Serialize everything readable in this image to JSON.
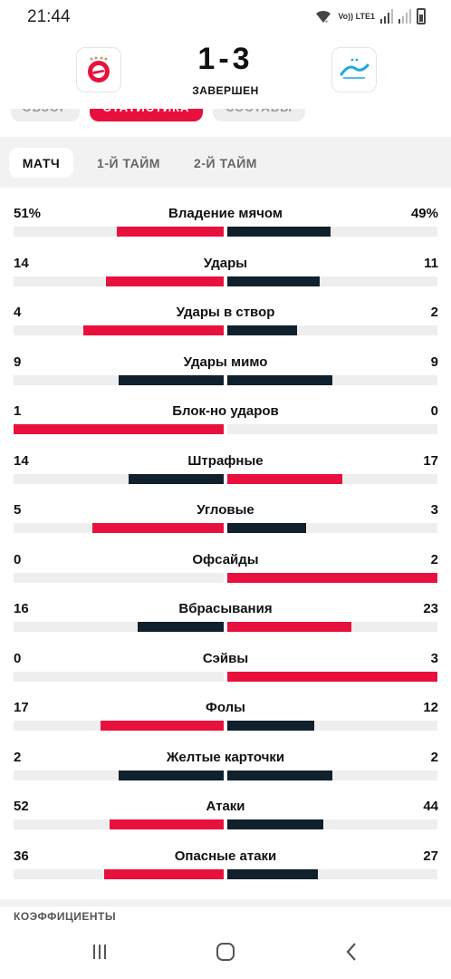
{
  "status_bar": {
    "time": "21:44",
    "network": "Vo)) LTE1"
  },
  "match": {
    "score": "1-3",
    "status": "ЗАВЕРШЕН",
    "home_logo_icon": "spartak-logo-icon",
    "away_logo_icon": "zenit-logo-icon"
  },
  "top_tabs": [
    "ОБЗОР",
    "СТАТИСТИКА",
    "СОСТАВЫ"
  ],
  "period_tabs": {
    "match": "МАТЧ",
    "first_half": "1-Й ТАЙМ",
    "second_half": "2-Й ТАЙМ",
    "active": "МАТЧ"
  },
  "colors": {
    "accent": "#e8113e",
    "dark": "#10202c",
    "track": "#eeeeee"
  },
  "stats": [
    {
      "name": "Владение мячом",
      "home": "51%",
      "away": "49%",
      "home_frac": 0.51,
      "away_frac": 0.49,
      "leader": "home"
    },
    {
      "name": "Удары",
      "home": "14",
      "away": "11",
      "home_frac": 0.56,
      "away_frac": 0.44,
      "leader": "home"
    },
    {
      "name": "Удары в створ",
      "home": "4",
      "away": "2",
      "home_frac": 0.667,
      "away_frac": 0.333,
      "leader": "home"
    },
    {
      "name": "Удары мимо",
      "home": "9",
      "away": "9",
      "home_frac": 0.5,
      "away_frac": 0.5,
      "leader": "none"
    },
    {
      "name": "Блок-но ударов",
      "home": "1",
      "away": "0",
      "home_frac": 1.0,
      "away_frac": 0.0,
      "leader": "home"
    },
    {
      "name": "Штрафные",
      "home": "14",
      "away": "17",
      "home_frac": 0.452,
      "away_frac": 0.548,
      "leader": "away"
    },
    {
      "name": "Угловые",
      "home": "5",
      "away": "3",
      "home_frac": 0.625,
      "away_frac": 0.375,
      "leader": "home"
    },
    {
      "name": "Офсайды",
      "home": "0",
      "away": "2",
      "home_frac": 0.0,
      "away_frac": 1.0,
      "leader": "away"
    },
    {
      "name": "Вбрасывания",
      "home": "16",
      "away": "23",
      "home_frac": 0.41,
      "away_frac": 0.59,
      "leader": "away"
    },
    {
      "name": "Сэйвы",
      "home": "0",
      "away": "3",
      "home_frac": 0.0,
      "away_frac": 1.0,
      "leader": "away"
    },
    {
      "name": "Фолы",
      "home": "17",
      "away": "12",
      "home_frac": 0.586,
      "away_frac": 0.414,
      "leader": "home"
    },
    {
      "name": "Желтые карточки",
      "home": "2",
      "away": "2",
      "home_frac": 0.5,
      "away_frac": 0.5,
      "leader": "none"
    },
    {
      "name": "Атаки",
      "home": "52",
      "away": "44",
      "home_frac": 0.542,
      "away_frac": 0.458,
      "leader": "home"
    },
    {
      "name": "Опасные атаки",
      "home": "36",
      "away": "27",
      "home_frac": 0.571,
      "away_frac": 0.429,
      "leader": "home"
    }
  ],
  "next_section": {
    "title": "КОЭФФИЦИЕНТЫ"
  },
  "nav": {
    "recent_icon": "recent-apps-icon",
    "home_icon": "home-icon",
    "back_icon": "back-icon"
  }
}
